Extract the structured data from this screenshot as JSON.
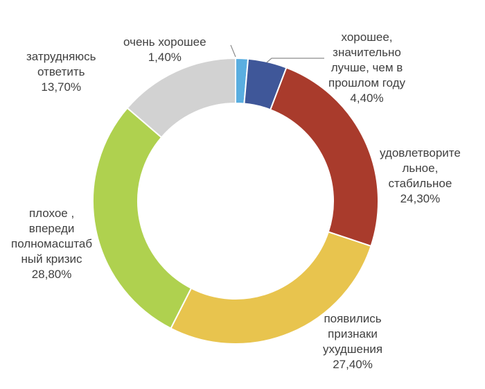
{
  "chart_data": {
    "type": "pie",
    "variant": "donut",
    "grid": false,
    "legend": "none",
    "slices": [
      {
        "label_lines": [
          "очень хорошее"
        ],
        "value_text": "1,40%",
        "value": 1.4,
        "color": "#5aaee0"
      },
      {
        "label_lines": [
          "хорошее,",
          "значительно",
          "лучше, чем в",
          "прошлом году"
        ],
        "value_text": "4,40%",
        "value": 4.4,
        "color": "#3f5799"
      },
      {
        "label_lines": [
          "удовлетворите",
          "льное,",
          "стабильное"
        ],
        "value_text": "24,30%",
        "value": 24.3,
        "color": "#a93b2c"
      },
      {
        "label_lines": [
          "появились",
          "признаки",
          "ухудшения"
        ],
        "value_text": "27,40%",
        "value": 27.4,
        "color": "#e8c44e"
      },
      {
        "label_lines": [
          "плохое ,",
          "впереди",
          "полномасштаб",
          "ный кризис"
        ],
        "value_text": "28,80%",
        "value": 28.8,
        "color": "#afd14f"
      },
      {
        "label_lines": [
          "затрудняюсь",
          "ответить"
        ],
        "value_text": "13,70%",
        "value": 13.7,
        "color": "#d2d2d2"
      }
    ]
  }
}
